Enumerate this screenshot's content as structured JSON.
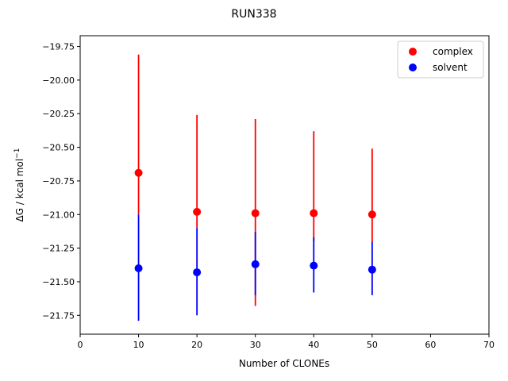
{
  "chart_data": {
    "type": "scatter",
    "title": "RUN338",
    "xlabel": "Number of CLONEs",
    "ylabel_main": "ΔG / kcal mol",
    "ylabel_sup": "−1",
    "xlim": [
      0,
      70
    ],
    "ylim": [
      -21.89,
      -19.67
    ],
    "x_ticks": [
      0,
      10,
      20,
      30,
      40,
      50,
      60,
      70
    ],
    "y_ticks": [
      -21.75,
      -21.5,
      -21.25,
      -21.0,
      -20.75,
      -20.5,
      -20.25,
      -20.0,
      -19.75
    ],
    "grid": false,
    "legend_position": "top-right",
    "series": [
      {
        "name": "complex",
        "color": "#ff0000",
        "x": [
          10,
          20,
          30,
          40,
          50
        ],
        "y": [
          -20.69,
          -20.98,
          -20.99,
          -20.99,
          -21.0
        ],
        "yerr_low": [
          -21.0,
          -21.1,
          -21.68,
          -21.2,
          -21.2
        ],
        "yerr_high": [
          -19.81,
          -20.26,
          -20.29,
          -20.38,
          -20.51
        ]
      },
      {
        "name": "solvent",
        "color": "#0000ff",
        "x": [
          10,
          20,
          30,
          40,
          50
        ],
        "y": [
          -21.4,
          -21.43,
          -21.37,
          -21.38,
          -21.41
        ],
        "yerr_low": [
          -21.79,
          -21.75,
          -21.6,
          -21.58,
          -21.6
        ],
        "yerr_high": [
          -21.0,
          -21.1,
          -21.13,
          -21.17,
          -21.2
        ]
      }
    ]
  }
}
